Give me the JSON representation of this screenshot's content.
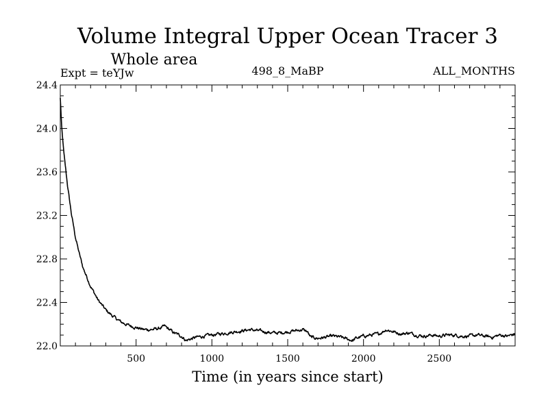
{
  "chart_data": {
    "type": "line",
    "title": "Volume Integral Upper Ocean Tracer 3",
    "subtitle": "Whole area",
    "header_left": "Expt = teYJw",
    "header_center": "498_8_MaBP",
    "header_right": "ALL_MONTHS",
    "xlabel": "Time (in years since start)",
    "ylabel": "",
    "xlim": [
      0,
      3000
    ],
    "ylim": [
      22.0,
      24.4
    ],
    "x_major_ticks": [
      500,
      1000,
      1500,
      2000,
      2500
    ],
    "x_tick_labels": [
      "500",
      "1000",
      "1500",
      "2000",
      "2500"
    ],
    "y_major_ticks": [
      22.0,
      22.4,
      22.8,
      23.2,
      23.6,
      24.0,
      24.4
    ],
    "y_tick_labels": [
      "22.0",
      "22.4",
      "22.8",
      "23.2",
      "23.6",
      "24.0",
      "24.4"
    ],
    "series": [
      {
        "name": "Tracer 3",
        "color": "#000000",
        "x": [
          0,
          10,
          25,
          50,
          75,
          100,
          125,
          150,
          200,
          250,
          300,
          350,
          400,
          450,
          500,
          550,
          600,
          650,
          690,
          720,
          750,
          800,
          830,
          850,
          900,
          950,
          1000,
          1050,
          1100,
          1150,
          1200,
          1250,
          1300,
          1350,
          1400,
          1450,
          1500,
          1550,
          1600,
          1630,
          1650,
          1700,
          1750,
          1800,
          1850,
          1900,
          1930,
          1950,
          2000,
          2050,
          2100,
          2150,
          2200,
          2250,
          2300,
          2350,
          2400,
          2450,
          2500,
          2550,
          2600,
          2650,
          2700,
          2750,
          2800,
          2850,
          2900,
          2950,
          3000
        ],
        "values": [
          24.28,
          24.0,
          23.75,
          23.45,
          23.2,
          23.0,
          22.85,
          22.72,
          22.55,
          22.42,
          22.33,
          22.27,
          22.22,
          22.19,
          22.17,
          22.15,
          22.15,
          22.16,
          22.18,
          22.15,
          22.12,
          22.09,
          22.05,
          22.06,
          22.08,
          22.09,
          22.1,
          22.11,
          22.12,
          22.13,
          22.14,
          22.15,
          22.14,
          22.13,
          22.12,
          22.12,
          22.13,
          22.14,
          22.15,
          22.13,
          22.08,
          22.07,
          22.08,
          22.09,
          22.08,
          22.06,
          22.05,
          22.07,
          22.09,
          22.1,
          22.11,
          22.15,
          22.13,
          22.11,
          22.12,
          22.1,
          22.09,
          22.1,
          22.09,
          22.1,
          22.1,
          22.09,
          22.09,
          22.1,
          22.09,
          22.08,
          22.1,
          22.09,
          22.11
        ]
      }
    ]
  }
}
